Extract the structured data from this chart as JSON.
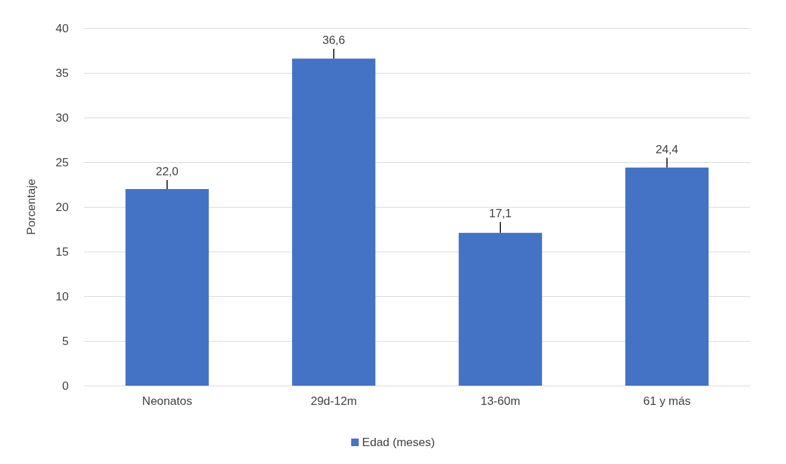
{
  "chart_data": {
    "type": "bar",
    "ylabel": "Porcentaje",
    "categories": [
      "Neonatos",
      "29d-12m",
      "13-60m",
      "61 y más"
    ],
    "series": [
      {
        "name": "Edad (meses)",
        "color": "#4472c4",
        "values": [
          22.0,
          36.6,
          17.1,
          24.4
        ],
        "value_labels": [
          "22,0",
          "36,6",
          "17,1",
          "24,4"
        ],
        "errors": [
          [
            22.0,
            23.0
          ],
          [
            36.6,
            37.7
          ],
          [
            17.1,
            18.3
          ],
          [
            24.4,
            25.5
          ]
        ]
      }
    ],
    "ylim": [
      0,
      40
    ],
    "yticks": [
      0,
      5,
      10,
      15,
      20,
      25,
      30,
      35,
      40
    ],
    "grid": "y",
    "legend": "bottom"
  }
}
